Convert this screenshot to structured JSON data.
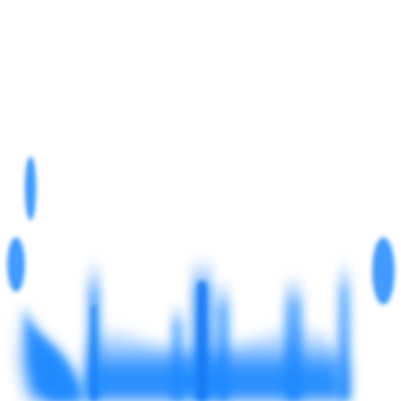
{
  "artwork": {
    "subject": "blue-flame-streaks",
    "background_color": "#ffffff",
    "accent_color": "#1e88ff",
    "deep_color": "#167af5",
    "soft_color": "#8ec2ff"
  }
}
